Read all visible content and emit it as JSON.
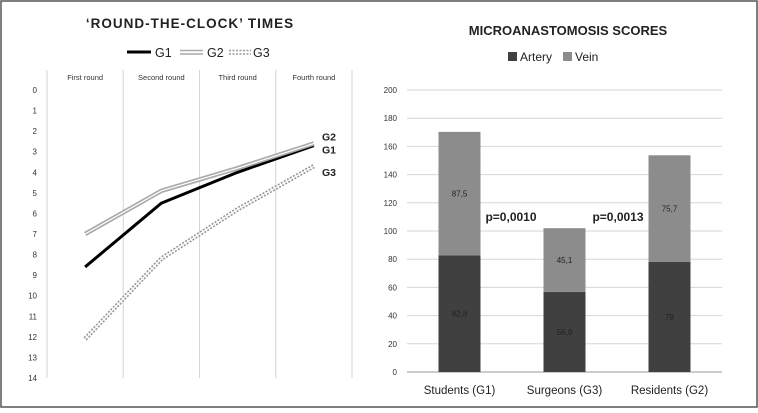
{
  "chart_data": [
    {
      "type": "line",
      "title": "‘ROUND-THE-CLOCK’ TIMES",
      "categories": [
        "First round",
        "Second round",
        "Third round",
        "Fourth round"
      ],
      "y_ticks": [
        "0",
        "1",
        "2",
        "3",
        "4",
        "5",
        "6",
        "7",
        "8",
        "9",
        "10",
        "11",
        "12",
        "13",
        "14"
      ],
      "ylim": [
        0,
        14
      ],
      "y_inverted": true,
      "legend_position": "top",
      "grid": "vertical",
      "series": [
        {
          "name": "G1",
          "values": [
            8.6,
            5.5,
            4.0,
            2.7
          ],
          "color": "#000000",
          "style": "solid",
          "end_label": "G1"
        },
        {
          "name": "G2",
          "values": [
            7.0,
            4.9,
            3.8,
            2.6
          ],
          "color": "#aaaaaa",
          "style": "double",
          "end_label": "G2"
        },
        {
          "name": "G3",
          "values": [
            12.1,
            8.2,
            5.8,
            3.7
          ],
          "color": "#999999",
          "style": "dotted",
          "end_label": "G3"
        }
      ]
    },
    {
      "type": "bar",
      "stacked": true,
      "title": "MICROANASTOMOSIS SCORES",
      "categories": [
        "Students (G1)",
        "Surgeons (G3)",
        "Residents (G2)"
      ],
      "y_ticks": [
        "0",
        "20",
        "40",
        "60",
        "80",
        "100",
        "120",
        "140",
        "160",
        "180",
        "200"
      ],
      "ylim": [
        0,
        200
      ],
      "legend_position": "top",
      "grid": "horizontal",
      "series": [
        {
          "name": "Artery",
          "values": [
            82.8,
            56.9,
            78
          ],
          "labels": [
            "82,8",
            "56,9",
            "78"
          ],
          "color": "#404040"
        },
        {
          "name": "Vein",
          "values": [
            87.5,
            45.1,
            75.7
          ],
          "labels": [
            "87,5",
            "45,1",
            "75,7"
          ],
          "color": "#8c8c8c"
        }
      ],
      "annotations": [
        "p=0,0010",
        "p=0,0013"
      ]
    }
  ]
}
